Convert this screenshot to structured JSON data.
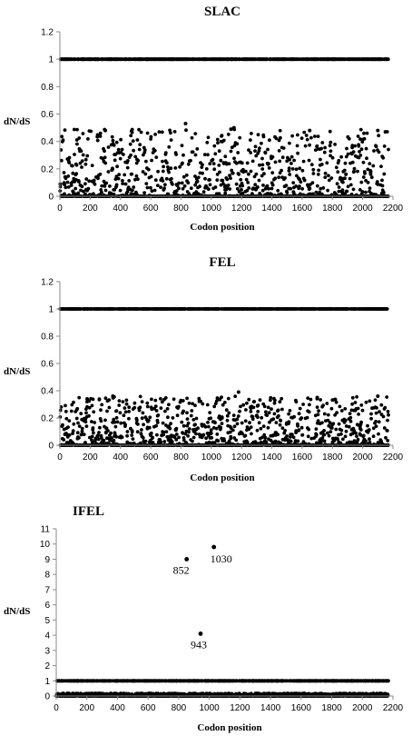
{
  "chart_data": [
    {
      "type": "scatter",
      "title": "SLAC",
      "xlabel": "Codon position",
      "ylabel": "dN/dS",
      "xlim": [
        0,
        2200
      ],
      "ylim": [
        0,
        1.2
      ],
      "xticks": [
        0,
        200,
        400,
        600,
        800,
        1000,
        1200,
        1400,
        1600,
        1800,
        2000,
        2200
      ],
      "yticks": [
        "0",
        "0.2",
        "0.4",
        "0.6",
        "0.8",
        "1",
        "1.2"
      ],
      "grid": false,
      "series_description": {
        "n_codons": 2170,
        "saturated_level": 1,
        "zero_level": 0,
        "scatter_max": 0.53,
        "notable_points": [
          {
            "x": 830,
            "y": 0.53
          },
          {
            "x": 1130,
            "y": 0.49
          },
          {
            "x": 1150,
            "y": 0.5
          },
          {
            "x": 300,
            "y": 0.48
          },
          {
            "x": 1650,
            "y": 0.48
          },
          {
            "x": 2100,
            "y": 0.48
          },
          {
            "x": 2150,
            "y": 0.47
          }
        ]
      }
    },
    {
      "type": "scatter",
      "title": "FEL",
      "xlabel": "Codon position",
      "ylabel": "dN/dS",
      "xlim": [
        0,
        2200
      ],
      "ylim": [
        0,
        1.2
      ],
      "xticks": [
        0,
        200,
        400,
        600,
        800,
        1000,
        1200,
        1400,
        1600,
        1800,
        2000,
        2200
      ],
      "yticks": [
        "0",
        "0.2",
        "0.4",
        "0.6",
        "0.8",
        "1",
        "1.2"
      ],
      "grid": false,
      "series_description": {
        "n_codons": 2170,
        "saturated_level": 1,
        "zero_level": 0,
        "scatter_max": 0.39,
        "notable_points": [
          {
            "x": 1180,
            "y": 0.39
          },
          {
            "x": 350,
            "y": 0.36
          },
          {
            "x": 2100,
            "y": 0.36
          },
          {
            "x": 1700,
            "y": 0.35
          },
          {
            "x": 180,
            "y": 0.34
          }
        ]
      }
    },
    {
      "type": "scatter",
      "title": "IFEL",
      "xlabel": "Codon position",
      "ylabel": "dN/dS",
      "xlim": [
        0,
        2200
      ],
      "ylim": [
        0,
        11
      ],
      "xticks": [
        0,
        200,
        400,
        600,
        800,
        1000,
        1200,
        1400,
        1600,
        1800,
        2000,
        2200
      ],
      "yticks": [
        "0",
        "1",
        "2",
        "3",
        "4",
        "5",
        "6",
        "7",
        "8",
        "9",
        "10",
        "11"
      ],
      "grid": false,
      "series_description": {
        "n_codons": 2170,
        "saturated_level": 1,
        "zero_level": 0,
        "scatter_max": 0.3
      },
      "annotated_points": [
        {
          "x": 852,
          "y": 9.0,
          "label": "852"
        },
        {
          "x": 1030,
          "y": 9.8,
          "label": "1030"
        },
        {
          "x": 943,
          "y": 4.1,
          "label": "943"
        }
      ]
    }
  ]
}
